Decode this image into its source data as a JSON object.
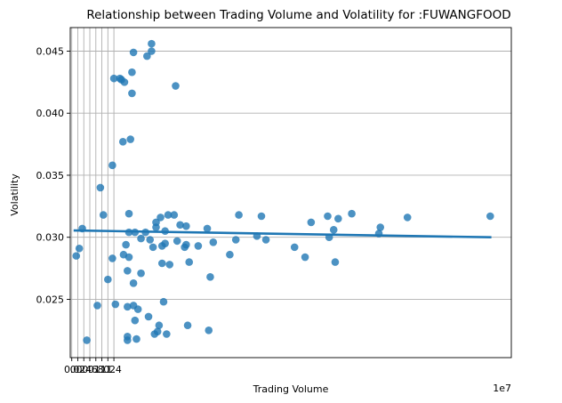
{
  "chart_data": {
    "type": "scatter",
    "title": "Relationship between Trading Volume and Volatility for :FUWANGFOOD",
    "xlabel": "Trading Volume",
    "ylabel": "Volatility",
    "x_offset_label": "1e7",
    "xlim": [
      -0.05,
      14.6
    ],
    "ylim": [
      0.0203,
      0.0469
    ],
    "x_ticks": [
      0.0,
      0.2,
      0.4,
      0.6,
      0.8,
      1.0,
      1.2,
      1.4
    ],
    "x_tick_labels": [
      "0.0",
      "0.2",
      "0.4",
      "0.6",
      "0.8",
      "1.0",
      "1.2",
      "1.4"
    ],
    "y_ticks": [
      0.025,
      0.03,
      0.035,
      0.04,
      0.045
    ],
    "y_tick_labels": [
      "0.025",
      "0.030",
      "0.035",
      "0.040",
      "0.045"
    ],
    "grid": true,
    "colors": {
      "point": "#1f77b4",
      "line": "#1f77b4"
    },
    "series": [
      {
        "points": [
          [
            0.15,
            0.0285
          ],
          [
            0.25,
            0.0291
          ],
          [
            0.35,
            0.0307
          ],
          [
            0.5,
            0.0217
          ],
          [
            0.85,
            0.0245
          ],
          [
            0.95,
            0.034
          ],
          [
            1.05,
            0.0318
          ],
          [
            1.2,
            0.0266
          ],
          [
            1.35,
            0.0283
          ],
          [
            1.35,
            0.0358
          ],
          [
            1.4,
            0.0428
          ],
          [
            1.45,
            0.0246
          ],
          [
            1.6,
            0.0428
          ],
          [
            1.65,
            0.0427
          ],
          [
            1.7,
            0.0377
          ],
          [
            1.72,
            0.0286
          ],
          [
            1.75,
            0.0425
          ],
          [
            1.8,
            0.0294
          ],
          [
            1.85,
            0.0273
          ],
          [
            1.85,
            0.0244
          ],
          [
            1.85,
            0.022
          ],
          [
            1.85,
            0.0217
          ],
          [
            1.9,
            0.0284
          ],
          [
            1.9,
            0.0304
          ],
          [
            1.9,
            0.0319
          ],
          [
            1.95,
            0.0379
          ],
          [
            2.0,
            0.0416
          ],
          [
            2.0,
            0.0433
          ],
          [
            2.05,
            0.0449
          ],
          [
            2.05,
            0.0263
          ],
          [
            2.05,
            0.0245
          ],
          [
            2.1,
            0.0233
          ],
          [
            2.1,
            0.0304
          ],
          [
            2.15,
            0.0218
          ],
          [
            2.2,
            0.0242
          ],
          [
            2.3,
            0.0299
          ],
          [
            2.3,
            0.0271
          ],
          [
            2.45,
            0.0304
          ],
          [
            2.5,
            0.0446
          ],
          [
            2.55,
            0.0236
          ],
          [
            2.6,
            0.0298
          ],
          [
            2.65,
            0.0456
          ],
          [
            2.65,
            0.045
          ],
          [
            2.7,
            0.0292
          ],
          [
            2.75,
            0.0222
          ],
          [
            2.8,
            0.0308
          ],
          [
            2.8,
            0.0312
          ],
          [
            2.85,
            0.0224
          ],
          [
            2.9,
            0.0229
          ],
          [
            2.95,
            0.0316
          ],
          [
            3.0,
            0.0293
          ],
          [
            3.0,
            0.0279
          ],
          [
            3.05,
            0.0248
          ],
          [
            3.1,
            0.0295
          ],
          [
            3.1,
            0.0305
          ],
          [
            3.15,
            0.0222
          ],
          [
            3.2,
            0.0318
          ],
          [
            3.25,
            0.0278
          ],
          [
            3.4,
            0.0318
          ],
          [
            3.45,
            0.0422
          ],
          [
            3.5,
            0.0297
          ],
          [
            3.6,
            0.031
          ],
          [
            3.75,
            0.0292
          ],
          [
            3.8,
            0.0309
          ],
          [
            3.8,
            0.0294
          ],
          [
            3.85,
            0.0229
          ],
          [
            3.9,
            0.028
          ],
          [
            4.2,
            0.0293
          ],
          [
            4.5,
            0.0307
          ],
          [
            4.55,
            0.0225
          ],
          [
            4.6,
            0.0268
          ],
          [
            4.7,
            0.0296
          ],
          [
            5.25,
            0.0286
          ],
          [
            5.45,
            0.0298
          ],
          [
            5.55,
            0.0318
          ],
          [
            6.15,
            0.0301
          ],
          [
            6.3,
            0.0317
          ],
          [
            6.45,
            0.0298
          ],
          [
            7.4,
            0.0292
          ],
          [
            7.75,
            0.0284
          ],
          [
            7.95,
            0.0312
          ],
          [
            8.5,
            0.0317
          ],
          [
            8.55,
            0.03
          ],
          [
            8.7,
            0.0306
          ],
          [
            8.75,
            0.028
          ],
          [
            8.85,
            0.0315
          ],
          [
            9.3,
            0.0319
          ],
          [
            10.2,
            0.0303
          ],
          [
            10.25,
            0.0308
          ],
          [
            11.15,
            0.0316
          ],
          [
            13.9,
            0.0317
          ]
        ]
      }
    ],
    "trend_line": {
      "x": [
        0.1,
        13.9
      ],
      "y": [
        0.03055,
        0.03
      ]
    }
  }
}
